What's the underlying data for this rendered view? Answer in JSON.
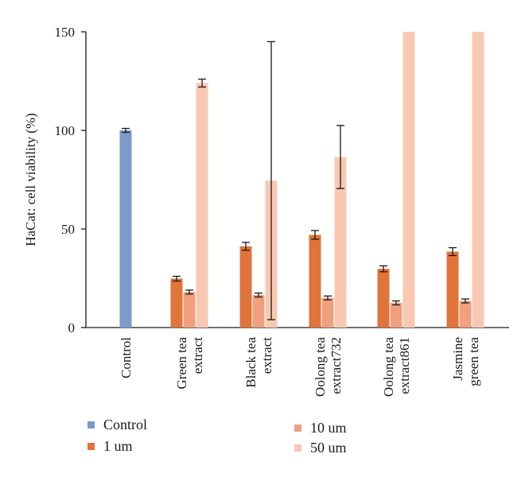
{
  "chart_data": {
    "type": "bar",
    "ylabel": "HaCat: cell viability (%)",
    "xlabel": "",
    "title": "",
    "ylim": [
      0,
      150
    ],
    "yticks": [
      0,
      50,
      100,
      150
    ],
    "grid": false,
    "legend_position": "bottom",
    "categories": [
      [
        "Control"
      ],
      [
        "Green tea",
        "extract"
      ],
      [
        "Black tea",
        "extract"
      ],
      [
        "Oolong tea",
        "extract732"
      ],
      [
        "Oolong tea",
        "extract861"
      ],
      [
        "Jasmine",
        "green tea"
      ]
    ],
    "series": [
      {
        "name": "Control",
        "color": "#7C9BC9",
        "values": [
          100,
          null,
          null,
          null,
          null,
          null
        ],
        "errors": [
          1,
          null,
          null,
          null,
          null,
          null
        ]
      },
      {
        "name": "1 um",
        "color": "#E0743A",
        "values": [
          null,
          24.8,
          41.2,
          47.0,
          29.8,
          38.5
        ],
        "errors": [
          null,
          1.2,
          2.0,
          2.2,
          1.5,
          2.0
        ]
      },
      {
        "name": "10 um",
        "color": "#F0A07F",
        "values": [
          null,
          18.0,
          16.5,
          15.0,
          12.5,
          13.5
        ],
        "errors": [
          null,
          1.0,
          1.0,
          1.0,
          1.0,
          1.0
        ]
      },
      {
        "name": "50 um",
        "color": "#F8C8B3",
        "values": [
          null,
          124,
          74.5,
          86.5,
          150,
          150
        ],
        "errors": [
          null,
          2.0,
          70.5,
          16.0,
          null,
          null
        ]
      }
    ]
  }
}
